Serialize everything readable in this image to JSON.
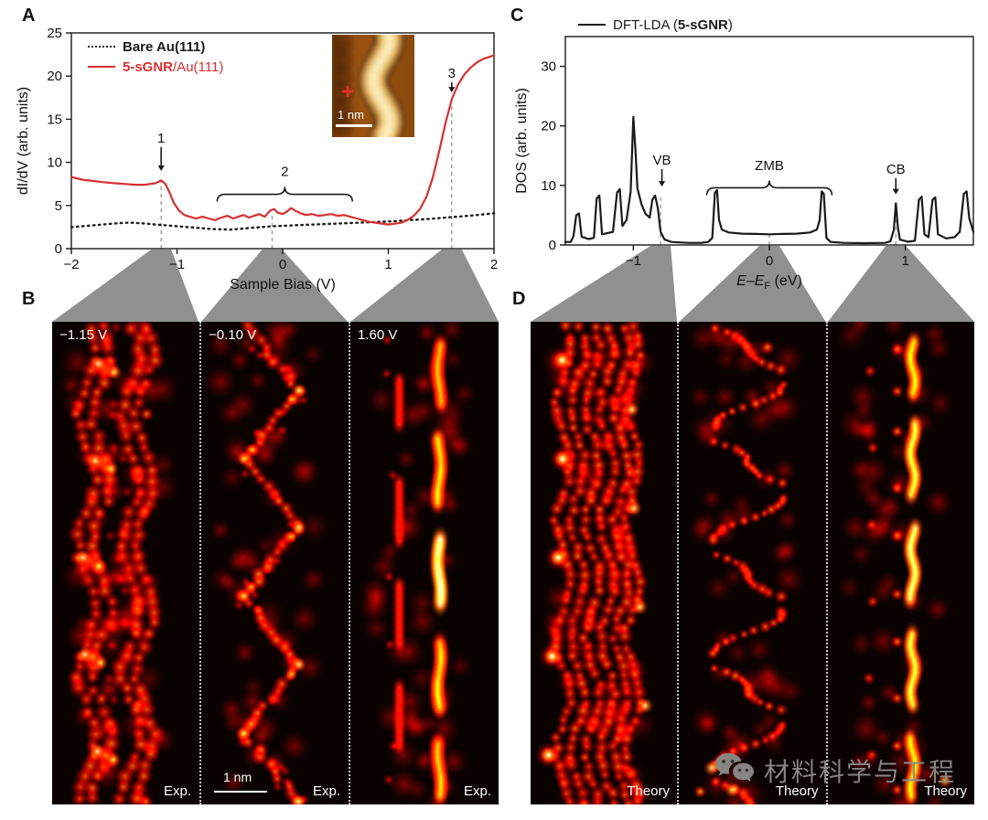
{
  "panel_a": {
    "label": "A",
    "legend": [
      {
        "pre": "",
        "bold": "Bare Au(111)",
        "post": "",
        "color": "#1a1a1a",
        "dash": "dotted"
      },
      {
        "pre": "",
        "bold": "5-sGNR",
        "post": "/Au(111)",
        "color": "#d53030",
        "dash": "solid"
      }
    ]
  },
  "panel_b": {
    "label": "B",
    "maps": [
      {
        "bias": "−1.15 V",
        "tag": "Exp."
      },
      {
        "bias": "−0.10 V",
        "tag": "Exp.",
        "scalebar": "1 nm"
      },
      {
        "bias": "1.60 V",
        "tag": "Exp."
      }
    ]
  },
  "panel_c": {
    "label": "C",
    "legend": [
      {
        "pre": "DFT-LDA (",
        "bold": "5-sGNR",
        "post": ")",
        "color": "#1a1a1a",
        "dash": "solid"
      }
    ]
  },
  "panel_d": {
    "label": "D",
    "maps": [
      {
        "tag": "Theory"
      },
      {
        "tag": "Theory"
      },
      {
        "tag": "Theory"
      }
    ]
  },
  "watermark": {
    "text": "材料科学与工程",
    "icon": "wechat-icon",
    "color": "#8c8c8c"
  },
  "chart_data": [
    {
      "id": "A",
      "type": "line",
      "xlabel": "Sample Bias (V)",
      "ylabel": "dI/dV (arb. units)",
      "xlim": [
        -2,
        2
      ],
      "ylim": [
        0,
        25
      ],
      "x_ticks": [
        -2,
        -1,
        0,
        1,
        2
      ],
      "y_ticks": [
        0,
        5,
        10,
        15,
        20,
        25
      ],
      "grid": false,
      "legend_position": "top-left",
      "series": [
        {
          "name": "Bare Au(111)",
          "color": "#1a1a1a",
          "style": "dotted",
          "points": [
            [
              -2,
              2.5
            ],
            [
              -1.8,
              2.7
            ],
            [
              -1.6,
              2.9
            ],
            [
              -1.5,
              3.0
            ],
            [
              -1.4,
              3.0
            ],
            [
              -1.3,
              2.9
            ],
            [
              -1.2,
              2.8
            ],
            [
              -1.1,
              2.7
            ],
            [
              -1.0,
              2.6
            ],
            [
              -0.9,
              2.5
            ],
            [
              -0.8,
              2.4
            ],
            [
              -0.7,
              2.3
            ],
            [
              -0.6,
              2.25
            ],
            [
              -0.5,
              2.2
            ],
            [
              -0.4,
              2.3
            ],
            [
              -0.3,
              2.4
            ],
            [
              -0.2,
              2.5
            ],
            [
              -0.1,
              2.6
            ],
            [
              0,
              2.65
            ],
            [
              0.2,
              2.75
            ],
            [
              0.4,
              2.85
            ],
            [
              0.6,
              2.95
            ],
            [
              0.8,
              3.05
            ],
            [
              1.0,
              3.15
            ],
            [
              1.2,
              3.3
            ],
            [
              1.4,
              3.45
            ],
            [
              1.6,
              3.65
            ],
            [
              1.8,
              3.85
            ],
            [
              2.0,
              4.1
            ]
          ]
        },
        {
          "name": "5-sGNR/Au(111)",
          "color": "#d53030",
          "style": "solid",
          "points": [
            [
              -2,
              8.3
            ],
            [
              -1.9,
              8.0
            ],
            [
              -1.8,
              7.85
            ],
            [
              -1.7,
              7.7
            ],
            [
              -1.6,
              7.6
            ],
            [
              -1.5,
              7.5
            ],
            [
              -1.4,
              7.4
            ],
            [
              -1.3,
              7.4
            ],
            [
              -1.25,
              7.5
            ],
            [
              -1.2,
              7.6
            ],
            [
              -1.15,
              7.9
            ],
            [
              -1.11,
              7.5
            ],
            [
              -1.07,
              6.5
            ],
            [
              -1.03,
              5.3
            ],
            [
              -0.98,
              4.4
            ],
            [
              -0.93,
              3.9
            ],
            [
              -0.88,
              3.7
            ],
            [
              -0.82,
              3.5
            ],
            [
              -0.76,
              3.7
            ],
            [
              -0.7,
              3.5
            ],
            [
              -0.64,
              3.3
            ],
            [
              -0.58,
              3.6
            ],
            [
              -0.52,
              3.8
            ],
            [
              -0.47,
              3.5
            ],
            [
              -0.42,
              3.7
            ],
            [
              -0.37,
              3.9
            ],
            [
              -0.32,
              3.6
            ],
            [
              -0.27,
              3.8
            ],
            [
              -0.22,
              4.0
            ],
            [
              -0.17,
              3.7
            ],
            [
              -0.12,
              4.4
            ],
            [
              -0.08,
              4.6
            ],
            [
              -0.05,
              4.2
            ],
            [
              0,
              4.0
            ],
            [
              0.04,
              4.3
            ],
            [
              0.08,
              4.7
            ],
            [
              0.12,
              4.4
            ],
            [
              0.17,
              4.1
            ],
            [
              0.22,
              3.9
            ],
            [
              0.28,
              4.0
            ],
            [
              0.34,
              3.8
            ],
            [
              0.4,
              3.9
            ],
            [
              0.46,
              4.0
            ],
            [
              0.52,
              3.8
            ],
            [
              0.58,
              3.9
            ],
            [
              0.64,
              3.7
            ],
            [
              0.7,
              3.5
            ],
            [
              0.76,
              3.3
            ],
            [
              0.82,
              3.1
            ],
            [
              0.88,
              3.0
            ],
            [
              0.94,
              2.9
            ],
            [
              1.0,
              2.8
            ],
            [
              1.06,
              2.9
            ],
            [
              1.12,
              3.0
            ],
            [
              1.18,
              3.3
            ],
            [
              1.24,
              3.8
            ],
            [
              1.3,
              4.6
            ],
            [
              1.36,
              6.0
            ],
            [
              1.42,
              8.2
            ],
            [
              1.48,
              11.2
            ],
            [
              1.54,
              14.5
            ],
            [
              1.6,
              17.3
            ],
            [
              1.66,
              19.0
            ],
            [
              1.72,
              20.2
            ],
            [
              1.78,
              21.0
            ],
            [
              1.84,
              21.6
            ],
            [
              1.9,
              22.0
            ],
            [
              1.95,
              22.2
            ],
            [
              2.0,
              22.4
            ]
          ]
        }
      ],
      "marker_lines": [
        {
          "x": -1.15,
          "y": 7.9
        },
        {
          "x": -0.1,
          "y": 4.0
        },
        {
          "x": 1.6,
          "y": 17.3
        }
      ],
      "annotations": [
        {
          "type": "arrow",
          "label": "1",
          "x": -1.15,
          "label_y": 12.3,
          "tip_y": 9.0
        },
        {
          "type": "brace",
          "label": "2",
          "x1": -0.62,
          "x2": 0.66,
          "y": 6.3,
          "label_y": 8.4
        },
        {
          "type": "arrow",
          "label": "3",
          "x": 1.6,
          "label_y": 19.8,
          "tip_y": 18.1
        }
      ],
      "inset": {
        "scalebar": "1 nm",
        "marker": "red-cross"
      }
    },
    {
      "id": "C",
      "type": "line",
      "xlabel_parts": {
        "pre": "E",
        "dash": "–",
        "sub_base": "E",
        "sub": "F",
        "post": " (eV)"
      },
      "ylabel": "DOS (arb. units)",
      "xlim": [
        -1.5,
        1.5
      ],
      "ylim": [
        0,
        35
      ],
      "x_ticks": [
        -1,
        0,
        1
      ],
      "y_ticks": [
        0,
        10,
        20,
        30
      ],
      "grid": false,
      "legend_position": "top-left",
      "series": [
        {
          "name": "DFT-LDA (5-sGNR)",
          "color": "#1a1a1a",
          "style": "solid",
          "points": [
            [
              -1.5,
              0.5
            ],
            [
              -1.46,
              0.5
            ],
            [
              -1.44,
              1.5
            ],
            [
              -1.42,
              5.0
            ],
            [
              -1.4,
              5.3
            ],
            [
              -1.38,
              1.4
            ],
            [
              -1.33,
              1.0
            ],
            [
              -1.29,
              1.2
            ],
            [
              -1.27,
              7.8
            ],
            [
              -1.25,
              8.3
            ],
            [
              -1.23,
              1.8
            ],
            [
              -1.19,
              2.0
            ],
            [
              -1.15,
              2.2
            ],
            [
              -1.12,
              8.8
            ],
            [
              -1.1,
              9.4
            ],
            [
              -1.08,
              3.2
            ],
            [
              -1.05,
              4.2
            ],
            [
              -1.02,
              9.0
            ],
            [
              -1.0,
              21.5
            ],
            [
              -0.985,
              16.0
            ],
            [
              -0.97,
              9.5
            ],
            [
              -0.94,
              6.8
            ],
            [
              -0.91,
              5.2
            ],
            [
              -0.88,
              4.6
            ],
            [
              -0.86,
              7.6
            ],
            [
              -0.84,
              8.3
            ],
            [
              -0.82,
              6.2
            ],
            [
              -0.8,
              2.2
            ],
            [
              -0.77,
              0.9
            ],
            [
              -0.72,
              0.5
            ],
            [
              -0.6,
              0.35
            ],
            [
              -0.5,
              0.35
            ],
            [
              -0.45,
              0.5
            ],
            [
              -0.42,
              1.2
            ],
            [
              -0.4,
              8.8
            ],
            [
              -0.385,
              9.2
            ],
            [
              -0.37,
              4.2
            ],
            [
              -0.35,
              2.6
            ],
            [
              -0.3,
              2.1
            ],
            [
              -0.2,
              1.9
            ],
            [
              -0.1,
              1.85
            ],
            [
              0,
              1.8
            ],
            [
              0.1,
              1.85
            ],
            [
              0.2,
              1.9
            ],
            [
              0.3,
              2.1
            ],
            [
              0.35,
              2.6
            ],
            [
              0.37,
              4.2
            ],
            [
              0.385,
              9.0
            ],
            [
              0.4,
              8.6
            ],
            [
              0.42,
              1.2
            ],
            [
              0.45,
              0.5
            ],
            [
              0.55,
              0.35
            ],
            [
              0.7,
              0.3
            ],
            [
              0.85,
              0.35
            ],
            [
              0.89,
              0.6
            ],
            [
              0.915,
              2.5
            ],
            [
              0.93,
              7.0
            ],
            [
              0.945,
              3.0
            ],
            [
              0.96,
              0.9
            ],
            [
              1.02,
              0.55
            ],
            [
              1.07,
              0.7
            ],
            [
              1.1,
              7.6
            ],
            [
              1.12,
              8.1
            ],
            [
              1.14,
              1.8
            ],
            [
              1.17,
              1.3
            ],
            [
              1.2,
              7.6
            ],
            [
              1.22,
              8.0
            ],
            [
              1.24,
              1.8
            ],
            [
              1.3,
              1.1
            ],
            [
              1.36,
              1.3
            ],
            [
              1.4,
              2.2
            ],
            [
              1.43,
              8.6
            ],
            [
              1.45,
              9.0
            ],
            [
              1.47,
              4.5
            ],
            [
              1.5,
              2.2
            ]
          ]
        }
      ],
      "marker_lines": [
        {
          "x": -0.8,
          "y": 8.2
        },
        {
          "x": 0,
          "y": 1.8
        },
        {
          "x": 0.93,
          "y": 7.0
        }
      ],
      "annotations": [
        {
          "type": "arrow",
          "label": "VB",
          "x": -0.79,
          "label_y": 13.5,
          "tip_y": 9.8
        },
        {
          "type": "brace",
          "label": "ZMB",
          "x1": -0.46,
          "x2": 0.46,
          "y": 9.6,
          "label_y": 12.6
        },
        {
          "type": "arrow",
          "label": "CB",
          "x": 0.93,
          "label_y": 12.0,
          "tip_y": 8.5
        }
      ]
    }
  ]
}
